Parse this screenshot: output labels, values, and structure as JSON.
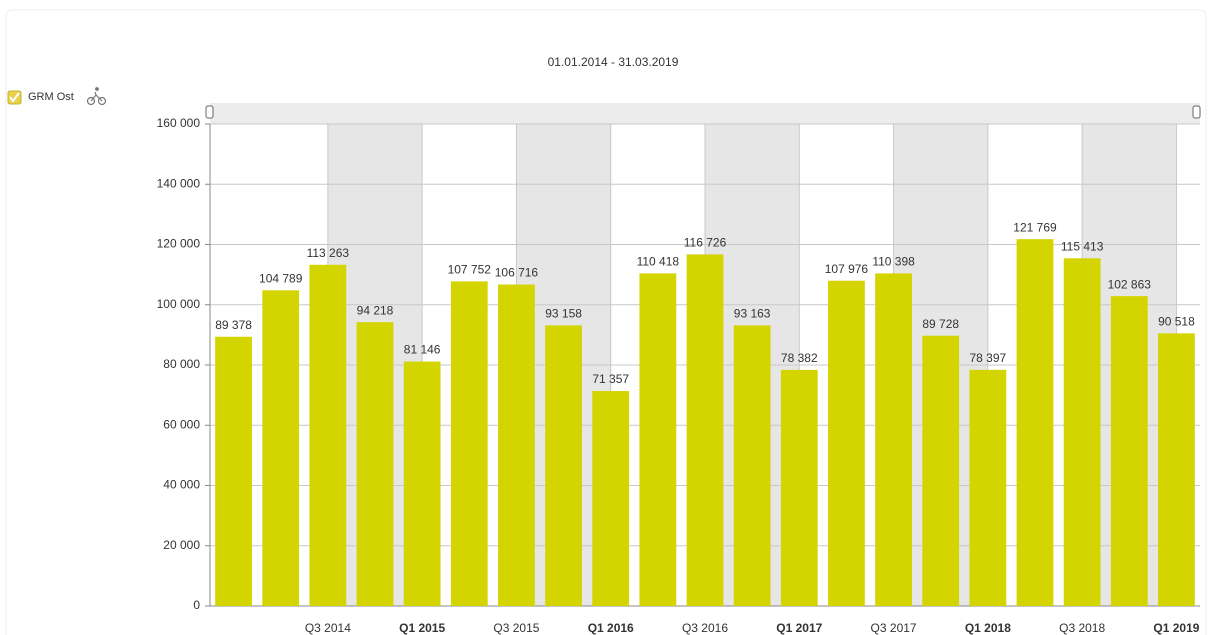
{
  "chart_data": {
    "type": "bar",
    "title": "01.01.2014 - 31.03.2019",
    "legend": "GRM Ost",
    "color": "#d4d400",
    "categories": [
      null,
      null,
      "Q3 2014",
      null,
      "Q1 2015",
      null,
      "Q3 2015",
      null,
      "Q1 2016",
      null,
      "Q3 2016",
      null,
      "Q1 2017",
      null,
      "Q3 2017",
      null,
      "Q1 2018",
      null,
      "Q3 2018",
      null,
      "Q1 2019"
    ],
    "values": [
      89378,
      104789,
      113263,
      94218,
      81146,
      107752,
      106716,
      93158,
      71357,
      110418,
      116726,
      93163,
      78382,
      107976,
      110398,
      89728,
      78397,
      121769,
      115413,
      102863,
      90518
    ],
    "value_labels": [
      "89 378",
      "104 789",
      "113 263",
      "94 218",
      "81 146",
      "107 752",
      "106 716",
      "93 158",
      "71 357",
      "110 418",
      "116 726",
      "93 163",
      "78 382",
      "107 976",
      "110 398",
      "89 728",
      "78 397",
      "121 769",
      "115 413",
      "102 863",
      "90 518"
    ],
    "ylim": [
      0,
      160000
    ],
    "yticks": [
      0,
      {
        "value": 20000,
        "label": "20 000"
      },
      {
        "value": 40000,
        "label": "40 000"
      },
      {
        "value": 60000,
        "label": "60 000"
      },
      {
        "value": 80000,
        "label": "80 000"
      },
      {
        "value": 100000,
        "label": "100 000"
      },
      {
        "value": 120000,
        "label": "120 000"
      },
      {
        "value": 140000,
        "label": "140 000"
      },
      {
        "value": 160000,
        "label": "160 000"
      }
    ],
    "grid": true
  }
}
